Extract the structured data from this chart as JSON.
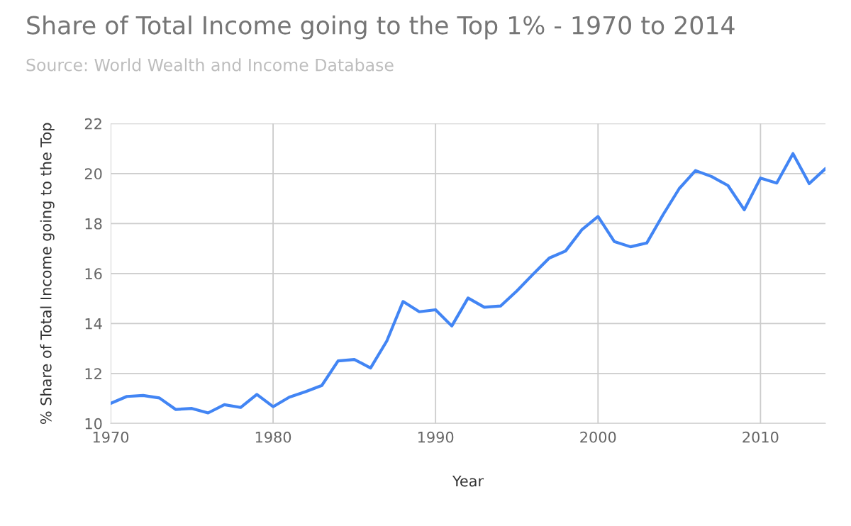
{
  "chart_data": {
    "type": "line",
    "title": "Share of Total Income going to the Top 1% - 1970 to 2014",
    "subtitle": "Source: World Wealth and Income Database",
    "xlabel": "Year",
    "ylabel": "% Share of Total Income going to the Top",
    "x": [
      1970,
      1971,
      1972,
      1973,
      1974,
      1975,
      1976,
      1977,
      1978,
      1979,
      1980,
      1981,
      1982,
      1983,
      1984,
      1985,
      1986,
      1987,
      1988,
      1989,
      1990,
      1991,
      1992,
      1993,
      1994,
      1995,
      1996,
      1997,
      1998,
      1999,
      2000,
      2001,
      2002,
      2003,
      2004,
      2005,
      2006,
      2007,
      2008,
      2009,
      2010,
      2011,
      2012,
      2013,
      2014
    ],
    "series": [
      {
        "color": "#4285f4",
        "values": [
          10.8,
          11.08,
          11.12,
          11.02,
          10.56,
          10.6,
          10.42,
          10.75,
          10.64,
          11.16,
          10.67,
          11.05,
          11.27,
          11.52,
          12.5,
          12.56,
          12.22,
          13.3,
          14.88,
          14.47,
          14.55,
          13.9,
          15.02,
          14.65,
          14.7,
          15.3,
          15.97,
          16.62,
          16.9,
          17.75,
          18.28,
          17.28,
          17.07,
          17.22,
          18.35,
          19.4,
          20.12,
          19.88,
          19.52,
          18.55,
          19.82,
          19.62,
          20.8,
          19.6,
          20.2
        ]
      }
    ],
    "xlim": [
      1970,
      2014
    ],
    "xticks": [
      1970,
      1980,
      1990,
      2000,
      2010
    ],
    "ylim": [
      10,
      22
    ],
    "yticks": [
      10,
      12,
      14,
      16,
      18,
      20,
      22
    ],
    "grid": true,
    "marker": "none",
    "line_style": "solid"
  }
}
